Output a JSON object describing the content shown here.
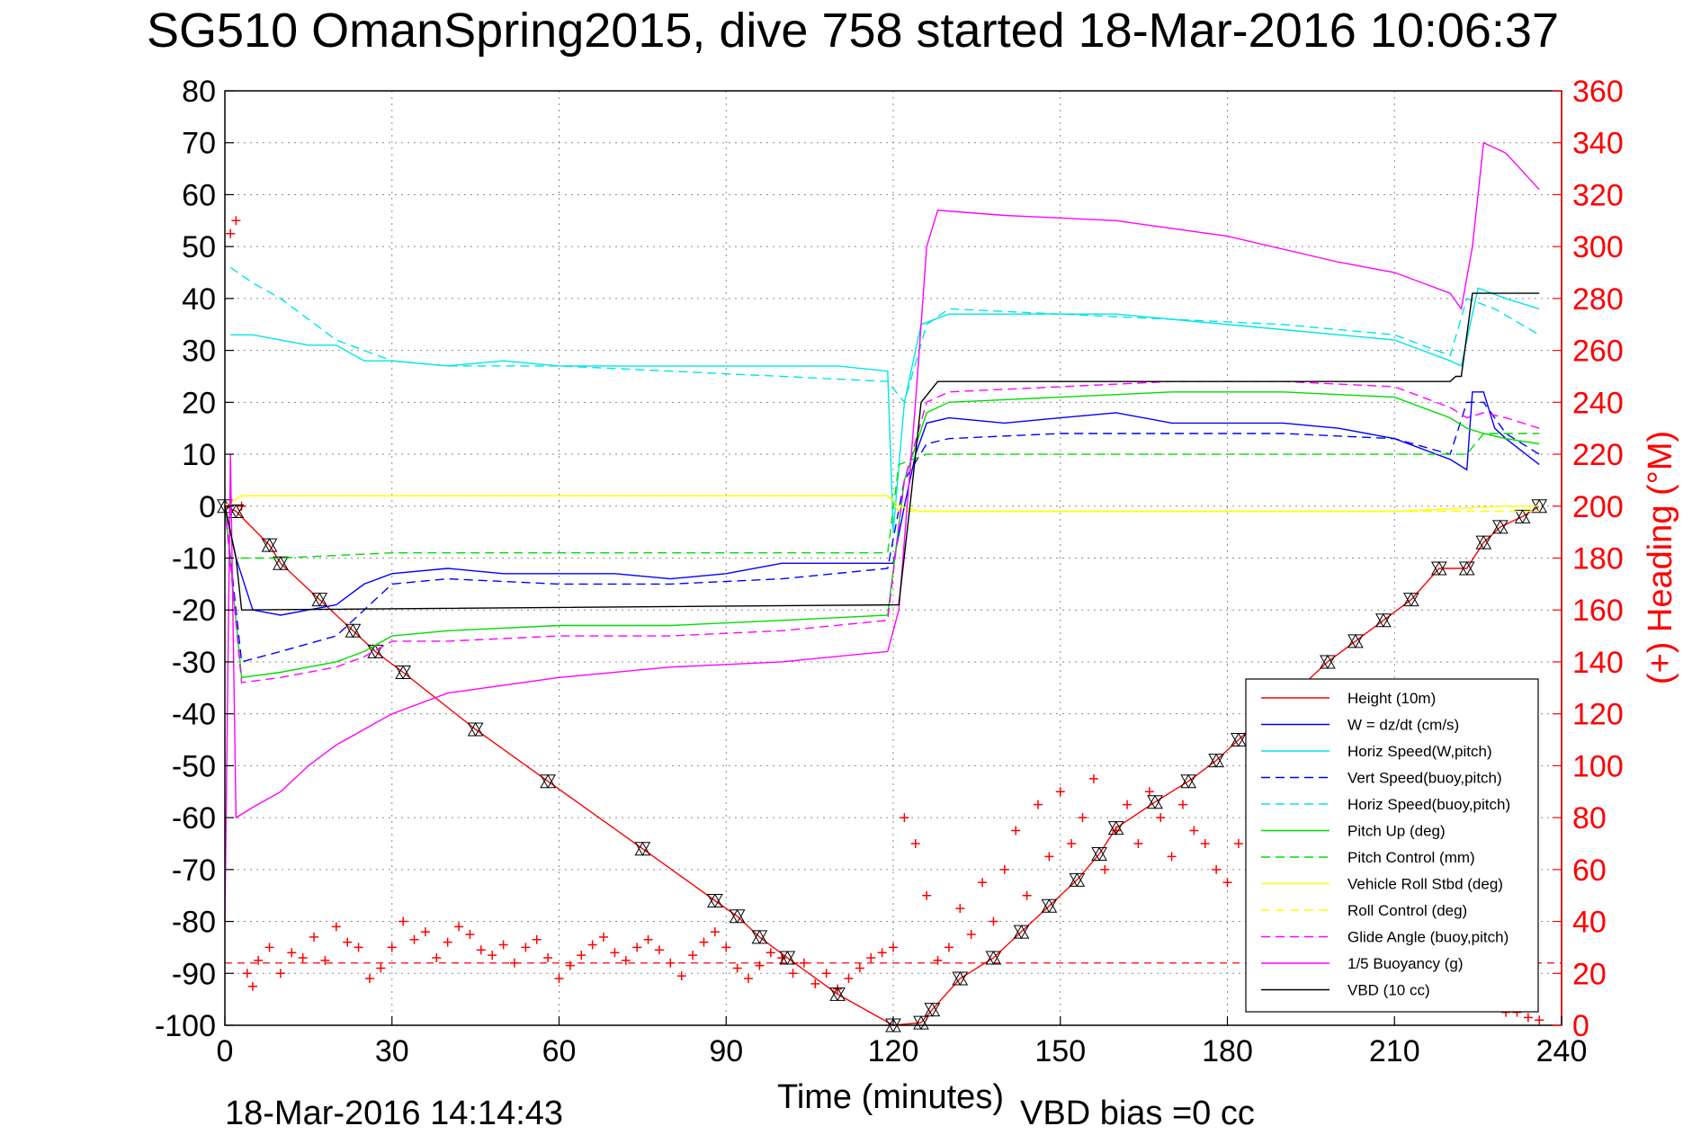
{
  "page": {
    "title": "SG510 OmanSpring2015, dive 758 started 18-Mar-2016 10:06:37",
    "footer_time": "18-Mar-2016 14:14:43",
    "footer_vbd": "VBD bias =0 cc"
  },
  "chart_data": {
    "type": "line",
    "title": "SG510 OmanSpring2015, dive 758 started 18-Mar-2016 10:06:37",
    "xlabel": "Time (minutes)",
    "ylabel": "",
    "y2label": "(+) Heading (°M)",
    "xlim": [
      0,
      240
    ],
    "ylim": [
      -100,
      80
    ],
    "y2lim": [
      0,
      360
    ],
    "xticks": [
      0,
      30,
      60,
      90,
      120,
      150,
      180,
      210,
      240
    ],
    "yticks": [
      80,
      70,
      60,
      50,
      40,
      30,
      20,
      10,
      0,
      -10,
      -20,
      -30,
      -40,
      -50,
      -60,
      -70,
      -80,
      -90,
      -100
    ],
    "y2ticks": [
      360,
      340,
      320,
      300,
      280,
      260,
      240,
      220,
      200,
      180,
      160,
      140,
      120,
      100,
      80,
      60,
      40,
      20,
      0
    ],
    "grid": true,
    "legend_position": "bottom-right",
    "series": [
      {
        "name": "Height (10m)",
        "color": "#ff0000",
        "style": "solid",
        "markers": "triangles",
        "x": [
          0,
          2,
          8,
          10,
          17,
          23,
          27,
          32,
          45,
          58,
          75,
          88,
          92,
          96,
          101,
          110,
          120,
          125,
          127,
          132,
          138,
          143,
          148,
          153,
          157,
          160,
          167,
          173,
          178,
          182,
          186,
          193,
          198,
          203,
          208,
          213,
          218,
          223,
          226,
          229,
          233,
          236
        ],
        "y": [
          0,
          -1,
          -7.5,
          -11,
          -18,
          -24,
          -28,
          -32,
          -43,
          -53,
          -66,
          -76,
          -79,
          -83,
          -87,
          -94,
          -100,
          -99.5,
          -97,
          -91,
          -87,
          -82,
          -77,
          -72,
          -67,
          -62,
          -57,
          -53,
          -49,
          -45,
          -41,
          -35,
          -30,
          -26,
          -22,
          -18,
          -12,
          -12,
          -7,
          -4,
          -2,
          0
        ]
      },
      {
        "name": "W = dz/dt (cm/s)",
        "color": "#0000ff",
        "style": "solid",
        "x": [
          0,
          2,
          5,
          10,
          15,
          20,
          25,
          30,
          40,
          50,
          60,
          70,
          80,
          90,
          100,
          110,
          120,
          122,
          124,
          126,
          130,
          140,
          150,
          160,
          170,
          180,
          190,
          200,
          210,
          220,
          223,
          224,
          226,
          228,
          230,
          236
        ],
        "y": [
          0,
          -10,
          -20,
          -21,
          -20,
          -19,
          -15,
          -13,
          -12,
          -13,
          -13,
          -13,
          -14,
          -13,
          -11,
          -11,
          -11,
          0,
          10,
          16,
          17,
          16,
          17,
          18,
          16,
          16,
          16,
          15,
          13,
          9,
          7,
          22,
          22,
          15,
          13,
          8
        ]
      },
      {
        "name": "Horiz Speed(W,pitch)",
        "color": "#00e5e5",
        "style": "solid",
        "x": [
          1,
          5,
          10,
          15,
          20,
          25,
          30,
          40,
          50,
          60,
          70,
          80,
          90,
          100,
          110,
          119,
          120,
          122,
          125,
          130,
          140,
          150,
          160,
          170,
          180,
          190,
          200,
          210,
          220,
          222,
          225,
          230,
          236
        ],
        "y": [
          33,
          33,
          32,
          31,
          31,
          28,
          28,
          27,
          28,
          27,
          27,
          27,
          27,
          27,
          27,
          26,
          -5,
          20,
          35,
          37,
          37,
          37,
          37,
          36,
          35,
          34,
          33,
          32,
          28,
          27,
          42,
          40,
          38
        ]
      },
      {
        "name": "Vert Speed(buoy,pitch)",
        "color": "#0000ff",
        "style": "dashed",
        "x": [
          0,
          3,
          10,
          20,
          30,
          40,
          60,
          80,
          100,
          119,
          122,
          126,
          130,
          150,
          170,
          190,
          210,
          220,
          223,
          226,
          230,
          236
        ],
        "y": [
          0,
          -30,
          -28,
          -25,
          -15,
          -14,
          -15,
          -15,
          -14,
          -12,
          5,
          12,
          13,
          14,
          14,
          14,
          13,
          10,
          20,
          20,
          14,
          10
        ]
      },
      {
        "name": "Horiz Speed(buoy,pitch)",
        "color": "#00e5e5",
        "style": "dashed",
        "x": [
          1,
          5,
          10,
          20,
          30,
          40,
          60,
          80,
          100,
          119,
          122,
          126,
          130,
          150,
          170,
          190,
          210,
          220,
          223,
          228,
          236
        ],
        "y": [
          46,
          43,
          40,
          32,
          28,
          27,
          27,
          26,
          25,
          24,
          20,
          35,
          38,
          37,
          36,
          35,
          33,
          29,
          40,
          38,
          33
        ]
      },
      {
        "name": "Pitch Up (deg)",
        "color": "#00dd00",
        "style": "solid",
        "x": [
          0,
          3,
          10,
          20,
          25,
          30,
          40,
          60,
          80,
          100,
          119,
          122,
          126,
          130,
          150,
          170,
          190,
          210,
          220,
          223,
          226,
          230,
          236
        ],
        "y": [
          0,
          -33,
          -32,
          -30,
          -28,
          -25,
          -24,
          -23,
          -23,
          -22,
          -21,
          5,
          18,
          20,
          21,
          22,
          22,
          21,
          17,
          15,
          14,
          13,
          12
        ]
      },
      {
        "name": "Pitch Control (mm)",
        "color": "#00dd00",
        "style": "dashed",
        "x": [
          0,
          2,
          10,
          30,
          60,
          90,
          119,
          121,
          126,
          150,
          180,
          210,
          223,
          226,
          236
        ],
        "y": [
          0,
          -10,
          -10,
          -9,
          -9,
          -9,
          -9,
          8,
          10,
          10,
          10,
          10,
          10,
          14,
          14
        ]
      },
      {
        "name": "Vehicle Roll Stbd (deg)",
        "color": "#ffff00",
        "style": "solid",
        "x": [
          0,
          3,
          20,
          40,
          60,
          80,
          100,
          119,
          121,
          125,
          150,
          180,
          210,
          230,
          236
        ],
        "y": [
          0,
          2,
          2,
          2,
          2,
          2,
          2,
          2,
          0,
          -1,
          -1,
          -1,
          -1,
          0,
          0
        ]
      },
      {
        "name": "Roll Control (deg)",
        "color": "#ffff00",
        "style": "dashed",
        "x": [
          0,
          3,
          60,
          119,
          121,
          236
        ],
        "y": [
          0,
          2,
          2,
          2,
          -1,
          -1
        ]
      },
      {
        "name": "Glide Angle (buoy,pitch)",
        "color": "#ff00ff",
        "style": "dashed",
        "x": [
          0,
          3,
          10,
          20,
          25,
          30,
          40,
          60,
          80,
          100,
          119,
          122,
          126,
          130,
          150,
          170,
          190,
          210,
          220,
          223,
          226,
          230,
          236
        ],
        "y": [
          0,
          -34,
          -33,
          -31,
          -29,
          -26,
          -26,
          -25,
          -25,
          -24,
          -22,
          5,
          20,
          22,
          23,
          24,
          24,
          23,
          19,
          17,
          18,
          17,
          15
        ]
      },
      {
        "name": "1/5 Buoyancy (g)",
        "color": "#ff00ff",
        "style": "solid",
        "x": [
          0,
          1,
          2,
          5,
          10,
          15,
          20,
          25,
          30,
          40,
          60,
          80,
          100,
          119,
          121,
          124,
          126,
          128,
          140,
          160,
          180,
          200,
          210,
          220,
          222,
          224,
          226,
          230,
          236
        ],
        "y": [
          -80,
          10,
          -60,
          -58,
          -55,
          -50,
          -46,
          -43,
          -40,
          -36,
          -33,
          -31,
          -30,
          -28,
          -20,
          20,
          50,
          57,
          56,
          55,
          52,
          47,
          45,
          41,
          38,
          50,
          70,
          68,
          61
        ]
      },
      {
        "name": "VBD (10 cc)",
        "color": "#000000",
        "style": "solid",
        "x": [
          0,
          2,
          3,
          121,
          123,
          125,
          128,
          220,
          221,
          222,
          223,
          224,
          236
        ],
        "y": [
          0,
          -10,
          -20,
          -19,
          0,
          20,
          24,
          24,
          25,
          25,
          33,
          41,
          41
        ]
      }
    ],
    "heading": {
      "name": "(+) Heading",
      "axis": "right",
      "color": "#ff0000",
      "reference_line": 24,
      "x": [
        1,
        2,
        3,
        4,
        5,
        6,
        8,
        10,
        12,
        14,
        16,
        18,
        20,
        22,
        24,
        26,
        28,
        30,
        32,
        34,
        36,
        38,
        40,
        42,
        44,
        46,
        48,
        50,
        52,
        54,
        56,
        58,
        60,
        62,
        64,
        66,
        68,
        70,
        72,
        74,
        76,
        78,
        80,
        82,
        84,
        86,
        88,
        90,
        92,
        94,
        96,
        98,
        100,
        102,
        104,
        106,
        108,
        110,
        112,
        114,
        116,
        118,
        120,
        122,
        124,
        126,
        128,
        130,
        132,
        134,
        136,
        138,
        140,
        142,
        144,
        146,
        148,
        150,
        152,
        154,
        156,
        158,
        160,
        162,
        164,
        166,
        168,
        170,
        172,
        174,
        176,
        178,
        180,
        182,
        184,
        186,
        188,
        190,
        192,
        194,
        196,
        198,
        200,
        202,
        204,
        206,
        208,
        210,
        212,
        214,
        216,
        218,
        220,
        222,
        224,
        226,
        228,
        230,
        232,
        234,
        236
      ],
      "y": [
        305,
        310,
        200,
        20,
        15,
        25,
        30,
        20,
        28,
        26,
        34,
        25,
        38,
        32,
        30,
        18,
        22,
        30,
        40,
        33,
        36,
        26,
        32,
        38,
        35,
        29,
        27,
        31,
        24,
        30,
        33,
        26,
        18,
        23,
        27,
        31,
        34,
        28,
        25,
        30,
        33,
        29,
        24,
        19,
        27,
        32,
        36,
        30,
        22,
        18,
        23,
        28,
        26,
        20,
        24,
        16,
        20,
        14,
        18,
        22,
        26,
        28,
        30,
        80,
        70,
        50,
        25,
        30,
        45,
        35,
        55,
        40,
        60,
        75,
        50,
        85,
        65,
        90,
        70,
        80,
        95,
        60,
        75,
        85,
        70,
        90,
        80,
        65,
        85,
        75,
        70,
        60,
        55,
        70,
        80,
        50,
        65,
        75,
        60,
        55,
        70,
        80,
        60,
        45,
        65,
        75,
        55,
        60,
        50,
        45,
        40,
        35,
        30,
        25,
        20,
        15,
        10,
        5,
        5,
        3,
        2
      ]
    }
  }
}
